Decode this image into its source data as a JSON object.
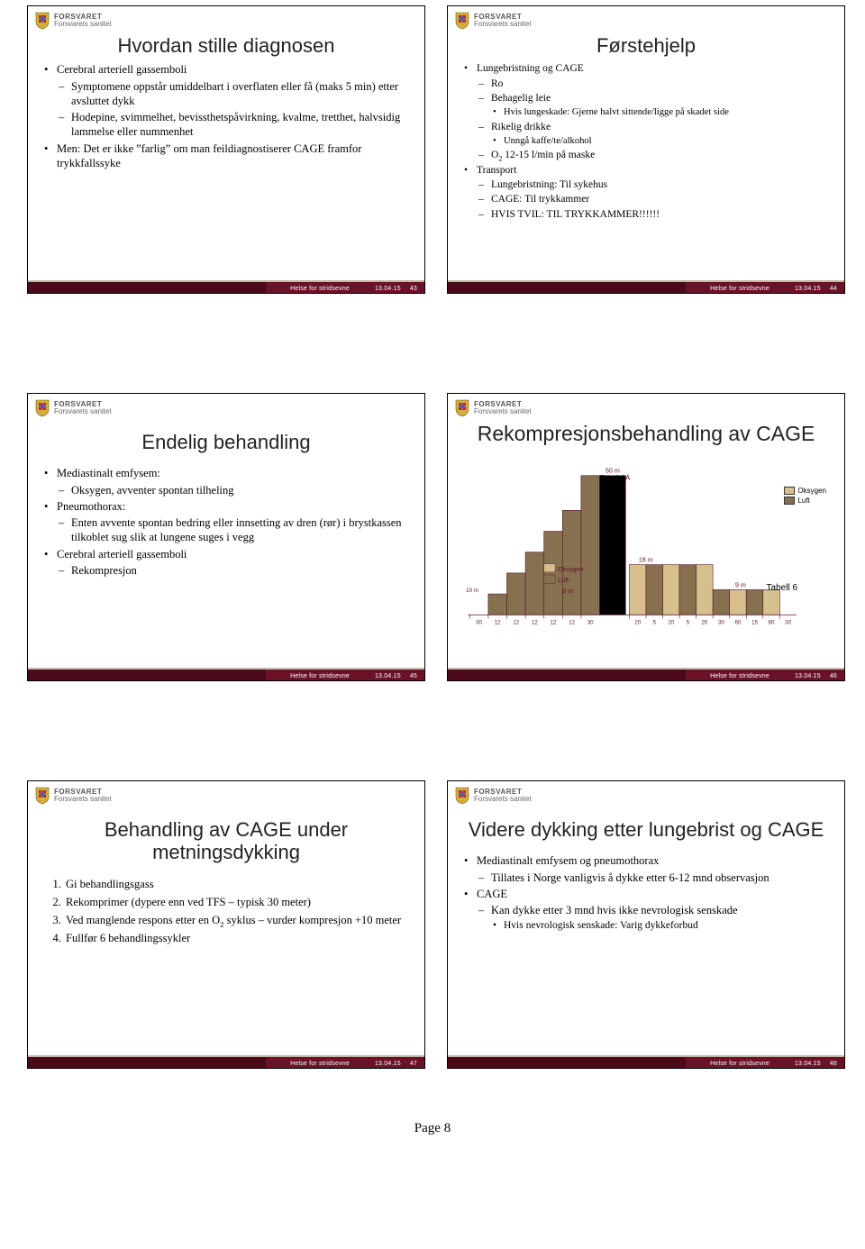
{
  "brand": {
    "top": "FORSVARET",
    "sub": "Forsvarets sanitet"
  },
  "footer": {
    "tag": "Helse for stridsevne",
    "date": "13.04.15"
  },
  "page_label": "Page 8",
  "slides": [
    {
      "num": "43",
      "title": "Hvordan stille diagnosen",
      "bullets": [
        {
          "l": 1,
          "t": "Cerebral arteriell gassemboli"
        },
        {
          "l": 2,
          "t": "Symptomene oppstår umiddelbart i overflaten eller få (maks 5 min) etter avsluttet dykk"
        },
        {
          "l": 2,
          "t": "Hodepine, svimmelhet, bevissthetspåvirkning, kvalme, tretthet, halvsidig lammelse eller nummenhet"
        },
        {
          "l": 1,
          "t": "Men: Det er ikke ”farlig” om man feildiagnostiserer CAGE framfor trykkfallssyke"
        }
      ]
    },
    {
      "num": "44",
      "title": "Førstehjelp",
      "bullets": [
        {
          "l": 1,
          "t": "Lungebristning og CAGE"
        },
        {
          "l": 2,
          "t": "Ro"
        },
        {
          "l": 2,
          "t": "Behagelig leie"
        },
        {
          "l": 3,
          "t": "Hvis lungeskade: Gjerne halvt sittende/ligge på skadet side"
        },
        {
          "l": 2,
          "t": "Rikelig drikke"
        },
        {
          "l": 3,
          "t": "Unngå kaffe/te/alkohol"
        },
        {
          "l": 2,
          "html": "O<sub>2</sub> 12-15 l/min på maske"
        },
        {
          "l": 1,
          "t": "Transport"
        },
        {
          "l": 2,
          "t": "Lungebristning: Til sykehus"
        },
        {
          "l": 2,
          "t": "CAGE: Til trykkammer"
        },
        {
          "l": 2,
          "t": "HVIS TVIL: TIL TRYKKAMMER!!!!!!"
        }
      ]
    },
    {
      "num": "45",
      "title": "Endelig behandling",
      "bullets": [
        {
          "l": 1,
          "t": "Mediastinalt emfysem:"
        },
        {
          "l": 2,
          "t": "Oksygen, avventer spontan tilheling"
        },
        {
          "l": 1,
          "t": "Pneumothorax:"
        },
        {
          "l": 2,
          "t": "Enten avvente spontan bedring eller innsetting av dren (rør) i brystkassen tilkoblet sug slik at lungene suges i vegg"
        },
        {
          "l": 1,
          "t": "Cerebral arteriell gassemboli"
        },
        {
          "l": 2,
          "t": "Rekompresjon"
        }
      ]
    },
    {
      "num": "46",
      "title": "Rekompresjonsbehandling av CAGE",
      "chart": {
        "type": "step-profile",
        "background": "#ffffff",
        "edge_color": "#611329",
        "series": [
          {
            "name": "Oksygen",
            "color": "#d6c08e"
          },
          {
            "name": "Luft",
            "color": "#857050"
          }
        ],
        "labels": {
          "table6a": "Tabell 6A",
          "table6": "Tabell 6",
          "depth_50": "50 m",
          "depth_18": "18 m",
          "depth_9": "9 m",
          "mid_o2": "Oksygen",
          "mid_air": "Luft"
        },
        "table6a_segments": [
          {
            "label": "30",
            "h": 0,
            "fill": "o2"
          },
          {
            "label": "12",
            "h": 0.15,
            "fill": "air"
          },
          {
            "label": "12",
            "h": 0.3,
            "fill": "air"
          },
          {
            "label": "12",
            "h": 0.45,
            "fill": "air"
          },
          {
            "label": "12",
            "h": 0.6,
            "fill": "air"
          },
          {
            "label": "12",
            "h": 0.75,
            "fill": "air"
          },
          {
            "label": "30",
            "h": 1.0,
            "fill": "air",
            "top": "50 m"
          }
        ],
        "table6_segments": [
          {
            "label": "20",
            "h": 0.36,
            "fill": "o2",
            "top": "18 m"
          },
          {
            "label": "5",
            "h": 0.36,
            "fill": "air"
          },
          {
            "label": "20",
            "h": 0.36,
            "fill": "o2"
          },
          {
            "label": "5",
            "h": 0.36,
            "fill": "air"
          },
          {
            "label": "20",
            "h": 0.36,
            "fill": "o2"
          },
          {
            "label": "30",
            "h": 0.18,
            "fill": "air"
          },
          {
            "label": "60",
            "h": 0.18,
            "fill": "o2",
            "top": "9 m"
          },
          {
            "label": "15",
            "h": 0.18,
            "fill": "air"
          },
          {
            "label": "60",
            "h": 0.18,
            "fill": "o2"
          },
          {
            "label": "30",
            "h": 0.0,
            "fill": "o2"
          }
        ],
        "mid_box": {
          "o2_label": "Oksygen",
          "o2_color": "#d6c08e",
          "air_label": "Luft",
          "air_color": "#857050",
          "depth_label": "9 m"
        }
      }
    },
    {
      "num": "47",
      "title": "Behandling av CAGE under metningsdykking",
      "ordered": [
        "Gi behandlingsgass",
        "Rekomprimer (dypere enn ved TFS – typisk 30 meter)",
        {
          "html": "Ved manglende respons etter en O<sub>2</sub> syklus – vurder kompresjon +10 meter"
        },
        "Fullfør 6 behandlingssykler"
      ]
    },
    {
      "num": "48",
      "title": "Videre dykking etter lungebrist og CAGE",
      "bullets": [
        {
          "l": 1,
          "t": "Mediastinalt emfysem og pneumothorax"
        },
        {
          "l": 2,
          "t": "Tillates i Norge vanligvis å dykke etter 6-12 mnd observasjon"
        },
        {
          "l": 1,
          "t": "CAGE"
        },
        {
          "l": 2,
          "t": "Kan dykke etter 3 mnd hvis ikke nevrologisk senskade"
        },
        {
          "l": 3,
          "t": "Hvis nevrologisk senskade: Varig dykkeforbud"
        }
      ]
    }
  ]
}
